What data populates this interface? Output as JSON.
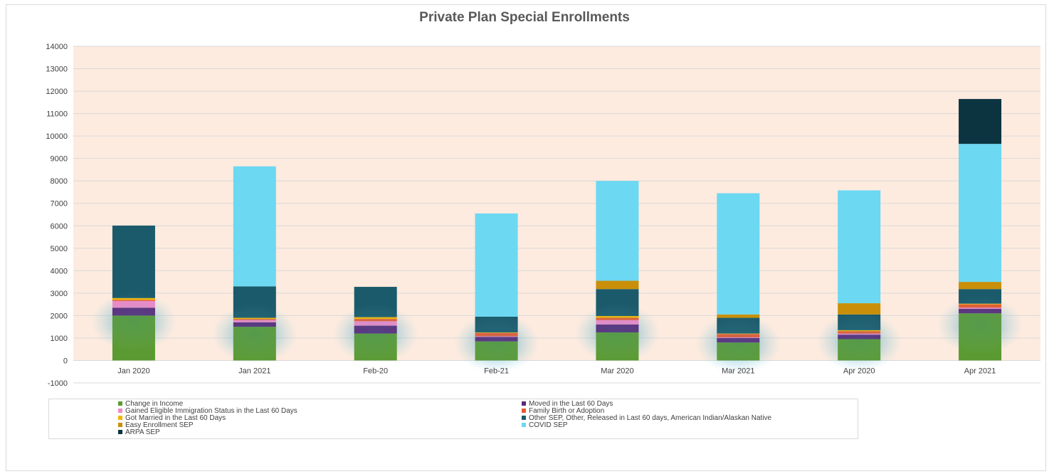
{
  "chart_data": {
    "type": "bar",
    "stacked": true,
    "title": "Private Plan Special Enrollments",
    "xlabel": "",
    "ylabel": "",
    "categories": [
      "Jan 2020",
      "Jan 2021",
      "Feb-20",
      "Feb-21",
      "Mar 2020",
      "Mar 2021",
      "Apr 2020",
      "Apr 2021"
    ],
    "ylim": [
      -1000,
      14000
    ],
    "yticks": [
      -1000,
      0,
      1000,
      2000,
      3000,
      4000,
      5000,
      6000,
      7000,
      8000,
      9000,
      10000,
      11000,
      12000,
      13000,
      14000
    ],
    "grid": true,
    "plot_background": "#fdebdf",
    "legend_position": "bottom",
    "series": [
      {
        "name": "Change in Income",
        "color": "#5b9a32",
        "values": [
          2000,
          1500,
          1200,
          850,
          1250,
          800,
          950,
          2100
        ]
      },
      {
        "name": "Moved in the Last 60 Days",
        "color": "#5b2a78",
        "values": [
          350,
          200,
          350,
          200,
          350,
          200,
          200,
          200
        ]
      },
      {
        "name": "Gained Eligible Immigration Status in the Last 60 Days",
        "color": "#ef89c8",
        "values": [
          300,
          100,
          200,
          30,
          200,
          30,
          50,
          50
        ]
      },
      {
        "name": "Family Birth or Adoption",
        "color": "#e8592f",
        "values": [
          50,
          50,
          100,
          150,
          100,
          150,
          100,
          150
        ]
      },
      {
        "name": "Got Married in the Last 60 Days",
        "color": "#f2b600",
        "values": [
          80,
          50,
          80,
          20,
          80,
          20,
          50,
          30
        ]
      },
      {
        "name": "Other SEP, Other, Released in Last 60 days, American Indian/Alaskan Native",
        "color": "#1b5a6a",
        "values": [
          3230,
          1400,
          1350,
          700,
          1200,
          700,
          700,
          650
        ]
      },
      {
        "name": "Easy Enrollment SEP",
        "color": "#c98f08",
        "values": [
          0,
          0,
          0,
          0,
          370,
          150,
          500,
          320
        ]
      },
      {
        "name": "COVID SEP",
        "color": "#6cd8f2",
        "values": [
          0,
          5350,
          0,
          4600,
          4450,
          5400,
          5030,
          6150
        ]
      },
      {
        "name": "ARPA SEP",
        "color": "#0b3440",
        "values": [
          0,
          0,
          0,
          0,
          0,
          0,
          0,
          2000
        ]
      }
    ]
  }
}
